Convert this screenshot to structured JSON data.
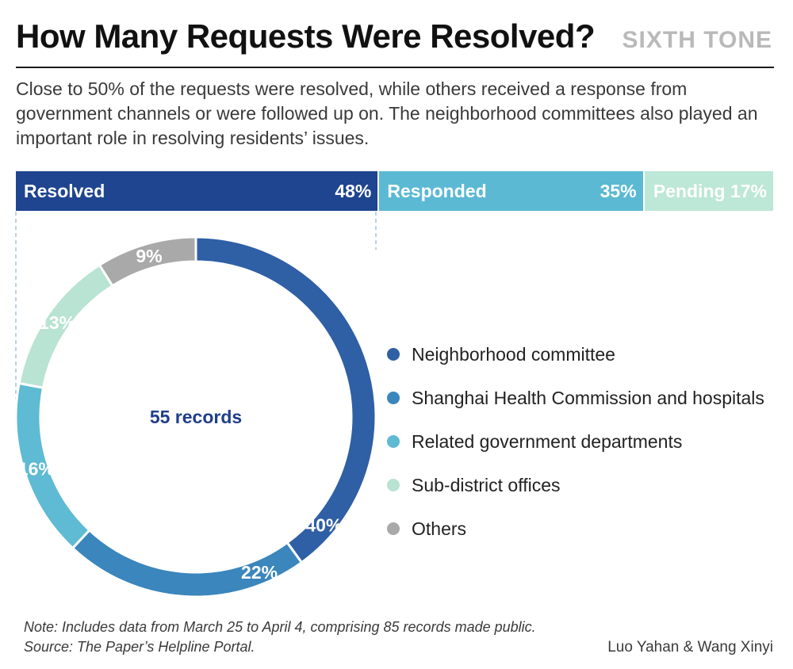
{
  "header": {
    "title": "How Many Requests Were Resolved?",
    "brand": "SIXTH TONE",
    "subtitle": "Close to 50% of the requests were resolved, while others received a response from government channels or were followed up on. The neighborhood committees also played an important role in resolving residents’ issues."
  },
  "chart_data": [
    {
      "type": "bar",
      "orientation": "horizontal-stacked",
      "categories": [
        "Resolved",
        "Responded",
        "Pending"
      ],
      "values": [
        48,
        35,
        17
      ],
      "value_labels": [
        "48%",
        "35%",
        "Pending 17%"
      ],
      "colors": [
        "#1f4590",
        "#5bb9d3",
        "#bde7d6"
      ]
    },
    {
      "type": "pie",
      "style": "donut",
      "center_label": "55 records",
      "categories": [
        "Neighborhood committee",
        "Shanghai Health Commission and hospitals",
        "Related government departments",
        "Sub-district offices",
        "Others"
      ],
      "values": [
        40,
        22,
        16,
        13,
        9
      ],
      "value_labels": [
        "40%",
        "22%",
        "16%",
        "13%",
        "9%"
      ],
      "colors": [
        "#2f5fa5",
        "#3a86bd",
        "#5fbad3",
        "#b9e3d3",
        "#a9a9a9"
      ],
      "legend_position": "right"
    }
  ],
  "footer": {
    "note": "Note: Includes data from March 25 to April 4, comprising 85  records made public.",
    "source": "Source: The Paper’s Helpline Portal.",
    "credit": "Luo Yahan & Wang Xinyi"
  }
}
